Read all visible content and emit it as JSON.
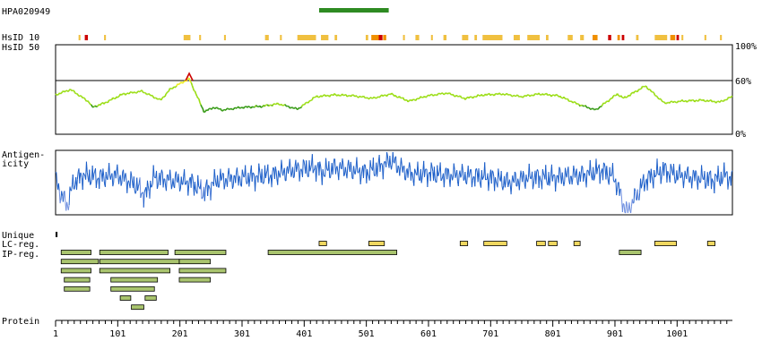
{
  "antibody_id": "HPA020949",
  "row_labels": {
    "hsid10": "HsID 10",
    "hsid50": "HsID 50",
    "antigenicity_line1": "Antigen-",
    "antigenicity_line2": "icity",
    "unique": "Unique",
    "lc_reg": "LC-reg.",
    "ip_reg": "IP-reg.",
    "protein": "Protein"
  },
  "identity_ticks": {
    "top": "100%",
    "mid": "60%",
    "bottom": "0%"
  },
  "colors": {
    "antigen_bar": "#2e8b22",
    "hsid_low": "#f0c040",
    "hsid_mid": "#f09000",
    "hsid_high": "#cc0000",
    "identity_line_high": "#eeee22",
    "identity_line_mid": "#99dd11",
    "identity_line_low": "#339911",
    "antigenicity_line": "#1d5fc9",
    "antigenicity_line_low": "#6f8fe0",
    "lc_reg_fill": "#f0d860",
    "ip_reg_fill": "#a9c46e",
    "peak_marker": "#cc0000"
  },
  "chart_data": [
    {
      "type": "line",
      "name": "HsID 50 identity",
      "xlabel": "Protein",
      "xlim": [
        1,
        1090
      ],
      "ylim": [
        0,
        100
      ],
      "yticks": [
        "100%",
        "60%",
        "0%"
      ],
      "reference_line": 60,
      "x": [
        1,
        25,
        55,
        60,
        80,
        110,
        140,
        170,
        185,
        205,
        216,
        225,
        240,
        255,
        270,
        300,
        330,
        360,
        390,
        420,
        450,
        480,
        510,
        540,
        570,
        600,
        630,
        660,
        690,
        720,
        750,
        780,
        810,
        840,
        870,
        895,
        905,
        915,
        930,
        950,
        980,
        1010,
        1040,
        1070,
        1090
      ],
      "values": [
        44,
        50,
        36,
        30,
        35,
        45,
        48,
        38,
        50,
        58,
        62,
        48,
        25,
        30,
        27,
        30,
        31,
        34,
        28,
        42,
        44,
        43,
        40,
        45,
        37,
        43,
        46,
        40,
        44,
        45,
        42,
        45,
        43,
        34,
        27,
        40,
        45,
        40,
        46,
        54,
        35,
        37,
        38,
        36,
        42
      ]
    },
    {
      "type": "line",
      "name": "Antigenicity",
      "xlabel": "Protein",
      "xlim": [
        1,
        1090
      ],
      "x": [
        1,
        10,
        20,
        30,
        45,
        70,
        100,
        130,
        145,
        160,
        180,
        220,
        240,
        260,
        300,
        350,
        380,
        420,
        430,
        450,
        480,
        500,
        520,
        540,
        560,
        580,
        600,
        620,
        650,
        700,
        730,
        760,
        800,
        850,
        880,
        900,
        920,
        950,
        980,
        1000,
        1030,
        1060,
        1080,
        1090
      ],
      "values": [
        0.1,
        -0.5,
        -0.9,
        0.0,
        0.3,
        0.2,
        0.3,
        -0.1,
        -0.5,
        0.2,
        0.1,
        0.0,
        -0.4,
        0.1,
        0.2,
        0.3,
        0.5,
        0.6,
        0.4,
        0.6,
        0.5,
        0.4,
        0.6,
        0.9,
        0.5,
        0.3,
        0.4,
        0.3,
        0.3,
        0.2,
        0.0,
        0.2,
        0.2,
        0.3,
        0.5,
        0.2,
        -1.2,
        0.1,
        0.5,
        0.3,
        0.2,
        0.1,
        0.3,
        0.1
      ]
    }
  ],
  "antigen_region": [
    425,
    537
  ],
  "hsid10_marks": [
    {
      "x": 38,
      "w": 3,
      "level": "low"
    },
    {
      "x": 48,
      "w": 5,
      "level": "high"
    },
    {
      "x": 79,
      "w": 3,
      "level": "low"
    },
    {
      "x": 207,
      "w": 11,
      "level": "low"
    },
    {
      "x": 232,
      "w": 3,
      "level": "low"
    },
    {
      "x": 272,
      "w": 3,
      "level": "low"
    },
    {
      "x": 338,
      "w": 6,
      "level": "low"
    },
    {
      "x": 362,
      "w": 3,
      "level": "low"
    },
    {
      "x": 390,
      "w": 30,
      "level": "low"
    },
    {
      "x": 428,
      "w": 12,
      "level": "low"
    },
    {
      "x": 450,
      "w": 4,
      "level": "low"
    },
    {
      "x": 500,
      "w": 4,
      "level": "low"
    },
    {
      "x": 509,
      "w": 12,
      "level": "mid"
    },
    {
      "x": 521,
      "w": 6,
      "level": "high"
    },
    {
      "x": 528,
      "w": 5,
      "level": "mid"
    },
    {
      "x": 560,
      "w": 3,
      "level": "low"
    },
    {
      "x": 580,
      "w": 6,
      "level": "low"
    },
    {
      "x": 605,
      "w": 3,
      "level": "low"
    },
    {
      "x": 625,
      "w": 5,
      "level": "low"
    },
    {
      "x": 655,
      "w": 10,
      "level": "low"
    },
    {
      "x": 675,
      "w": 4,
      "level": "low"
    },
    {
      "x": 688,
      "w": 32,
      "level": "low"
    },
    {
      "x": 738,
      "w": 10,
      "level": "low"
    },
    {
      "x": 760,
      "w": 20,
      "level": "low"
    },
    {
      "x": 790,
      "w": 4,
      "level": "low"
    },
    {
      "x": 825,
      "w": 8,
      "level": "low"
    },
    {
      "x": 845,
      "w": 6,
      "level": "low"
    },
    {
      "x": 865,
      "w": 8,
      "level": "mid"
    },
    {
      "x": 890,
      "w": 5,
      "level": "high"
    },
    {
      "x": 905,
      "w": 4,
      "level": "mid"
    },
    {
      "x": 912,
      "w": 4,
      "level": "high"
    },
    {
      "x": 935,
      "w": 4,
      "level": "low"
    },
    {
      "x": 965,
      "w": 20,
      "level": "low"
    },
    {
      "x": 990,
      "w": 8,
      "level": "mid"
    },
    {
      "x": 1000,
      "w": 4,
      "level": "high"
    },
    {
      "x": 1008,
      "w": 3,
      "level": "low"
    },
    {
      "x": 1045,
      "w": 3,
      "level": "low"
    },
    {
      "x": 1070,
      "w": 3,
      "level": "low"
    }
  ],
  "unique_marks": [
    [
      1,
      4
    ]
  ],
  "lc_regions": [
    [
      425,
      437
    ],
    [
      505,
      530
    ],
    [
      652,
      664
    ],
    [
      690,
      727
    ],
    [
      775,
      789
    ],
    [
      794,
      808
    ],
    [
      835,
      845
    ],
    [
      965,
      1000
    ],
    [
      1050,
      1062
    ]
  ],
  "ip_regions": [
    [
      [
        10,
        58
      ],
      [
        72,
        182
      ],
      [
        193,
        275
      ],
      [
        343,
        550
      ],
      [
        908,
        943
      ]
    ],
    [
      [
        10,
        70
      ],
      [
        72,
        200
      ],
      [
        200,
        250
      ]
    ],
    [
      [
        10,
        58
      ],
      [
        72,
        185
      ],
      [
        200,
        275
      ]
    ],
    [
      [
        15,
        56
      ],
      [
        90,
        165
      ],
      [
        200,
        250
      ]
    ],
    [
      [
        15,
        56
      ],
      [
        90,
        160
      ]
    ],
    [
      [
        105,
        122
      ],
      [
        145,
        163
      ]
    ],
    [
      [
        123,
        143
      ]
    ]
  ],
  "x_axis": {
    "title": "Protein",
    "ticks": [
      "1",
      "101",
      "201",
      "301",
      "401",
      "501",
      "601",
      "701",
      "801",
      "901",
      "1001"
    ],
    "tick_values": [
      1,
      101,
      201,
      301,
      401,
      501,
      601,
      701,
      801,
      901,
      1001
    ],
    "max": 1090
  }
}
